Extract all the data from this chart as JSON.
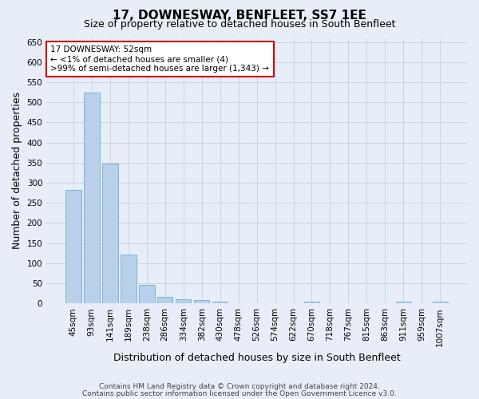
{
  "title": "17, DOWNESWAY, BENFLEET, SS7 1EE",
  "subtitle": "Size of property relative to detached houses in South Benfleet",
  "xlabel": "Distribution of detached houses by size in South Benfleet",
  "ylabel": "Number of detached properties",
  "footer1": "Contains HM Land Registry data © Crown copyright and database right 2024.",
  "footer2": "Contains public sector information licensed under the Open Government Licence v3.0.",
  "annotation_line1": "17 DOWNESWAY: 52sqm",
  "annotation_line2": "← <1% of detached houses are smaller (4)",
  "annotation_line3": ">99% of semi-detached houses are larger (1,343) →",
  "bar_values": [
    283,
    524,
    347,
    122,
    47,
    16,
    10,
    8,
    5,
    0,
    0,
    0,
    0,
    5,
    0,
    0,
    0,
    0,
    5,
    0,
    5
  ],
  "categories": [
    "45sqm",
    "93sqm",
    "141sqm",
    "189sqm",
    "238sqm",
    "286sqm",
    "334sqm",
    "382sqm",
    "430sqm",
    "478sqm",
    "526sqm",
    "574sqm",
    "622sqm",
    "670sqm",
    "718sqm",
    "767sqm",
    "815sqm",
    "863sqm",
    "911sqm",
    "959sqm",
    "1007sqm"
  ],
  "bar_color": "#b8d0ea",
  "bar_edge_color": "#6aaed6",
  "annotation_box_edge_color": "#cc0000",
  "annotation_box_face_color": "#ffffff",
  "grid_color": "#c8d4e4",
  "background_color": "#e8eef8",
  "ylim_max": 660,
  "ytick_step": 50,
  "title_fontsize": 11,
  "subtitle_fontsize": 9,
  "ylabel_fontsize": 9,
  "xlabel_fontsize": 9,
  "tick_fontsize": 7.5,
  "annotation_fontsize": 7.5,
  "footer_fontsize": 6.5
}
